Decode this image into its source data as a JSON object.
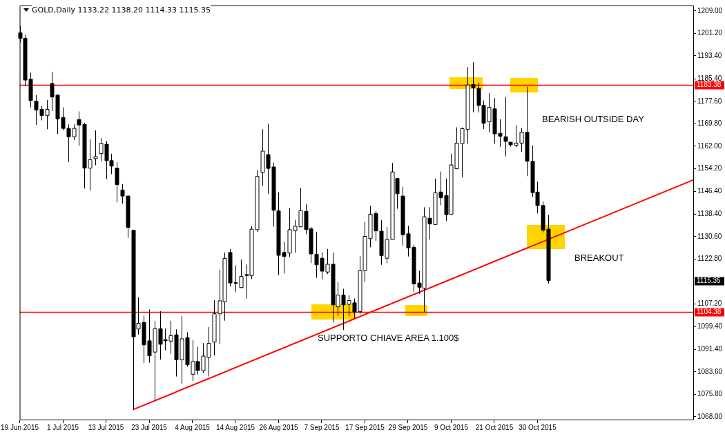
{
  "chart_data": {
    "type": "candlestick",
    "title": "GOLD,Daily 1133.22 1138.20 1114.33 1115.35",
    "color": "#000000",
    "categories": [
      "19 Jun 2015",
      null,
      null,
      null,
      null,
      null,
      null,
      null,
      "1 Jul 2015",
      null,
      null,
      null,
      null,
      null,
      null,
      null,
      "13 Jul 2015",
      null,
      null,
      null,
      null,
      null,
      null,
      null,
      "23 Jul 2015",
      null,
      null,
      null,
      null,
      null,
      null,
      null,
      "4 Aug 2015",
      null,
      null,
      null,
      null,
      null,
      null,
      null,
      "14 Aug 2015",
      null,
      null,
      null,
      null,
      null,
      null,
      null,
      "26 Aug 2015",
      null,
      null,
      null,
      null,
      null,
      null,
      null,
      "7 Sep 2015",
      null,
      null,
      null,
      null,
      null,
      null,
      null,
      "17 Sep 2015",
      null,
      null,
      null,
      null,
      null,
      null,
      null,
      "29 Sep 2015",
      null,
      null,
      null,
      null,
      null,
      null,
      null,
      "9 Oct 2015",
      null,
      null,
      null,
      null,
      null,
      null,
      null,
      "21 Oct 2015",
      null,
      null,
      null,
      null,
      null,
      null,
      null,
      "30 Oct 2015",
      null,
      null,
      null,
      null,
      null,
      null,
      null,
      null,
      null,
      null,
      null,
      null,
      null,
      null,
      null,
      null,
      null,
      null,
      null,
      null,
      null,
      null,
      null,
      null,
      null,
      null,
      null,
      null,
      null
    ],
    "ohlc": [
      [
        1201.4,
        1203.8,
        1198.1,
        1199.5
      ],
      [
        1199.5,
        1200.7,
        1182.9,
        1185.0
      ],
      [
        1185.3,
        1187.6,
        1175.5,
        1177.9
      ],
      [
        1177.7,
        1179.8,
        1169.4,
        1174.6
      ],
      [
        1174.8,
        1176.0,
        1171.0,
        1172.7
      ],
      [
        1172.7,
        1178.1,
        1167.9,
        1174.8
      ],
      [
        1183.8,
        1187.9,
        1174.3,
        1179.1
      ],
      [
        1179.8,
        1180.0,
        1166.3,
        1171.5
      ],
      [
        1172.0,
        1175.5,
        1167.5,
        1168.2
      ],
      [
        1168.2,
        1169.6,
        1156.5,
        1165.3
      ],
      [
        1165.3,
        1169.6,
        1164.1,
        1168.2
      ],
      [
        1171.3,
        1174.1,
        1162.2,
        1169.4
      ],
      [
        1169.6,
        1170.1,
        1147.3,
        1154.4
      ],
      [
        1154.4,
        1164.4,
        1146.6,
        1157.3
      ],
      [
        1157.7,
        1167.5,
        1155.4,
        1158.4
      ],
      [
        1159.4,
        1164.8,
        1156.8,
        1163.0
      ],
      [
        1162.7,
        1163.9,
        1150.6,
        1157.0
      ],
      [
        1157.0,
        1159.4,
        1152.3,
        1155.1
      ],
      [
        1154.4,
        1156.5,
        1142.5,
        1148.7
      ],
      [
        1146.8,
        1148.9,
        1142.1,
        1144.7
      ],
      [
        1144.7,
        1144.9,
        1130.2,
        1133.8
      ],
      [
        1132.8,
        1132.8,
        1070.5,
        1095.8
      ],
      [
        1098.5,
        1109.5,
        1096.6,
        1100.5
      ],
      [
        1100.8,
        1103.1,
        1086.6,
        1093.0
      ],
      [
        1094.4,
        1105.3,
        1086.8,
        1089.2
      ],
      [
        1090.5,
        1101.2,
        1073.7,
        1098.6
      ],
      [
        1098.6,
        1104.7,
        1087.9,
        1093.2
      ],
      [
        1094.8,
        1098.6,
        1091.1,
        1094.4
      ],
      [
        1094.3,
        1101.4,
        1089.9,
        1096.2
      ],
      [
        1096.5,
        1098.4,
        1082.0,
        1087.8
      ],
      [
        1087.8,
        1103.1,
        1079.4,
        1095.1
      ],
      [
        1095.5,
        1097.4,
        1085.4,
        1086.1
      ],
      [
        1082.8,
        1094.6,
        1080.4,
        1087.2
      ],
      [
        1087.2,
        1092.3,
        1082.6,
        1084.1
      ],
      [
        1084.0,
        1093.6,
        1083.2,
        1089.1
      ],
      [
        1088.7,
        1099.2,
        1082.0,
        1093.5
      ],
      [
        1094.0,
        1108.5,
        1089.3,
        1103.8
      ],
      [
        1103.8,
        1119.1,
        1093.2,
        1108.3
      ],
      [
        1108.0,
        1125.1,
        1101.4,
        1123.0
      ],
      [
        1125.1,
        1126.3,
        1113.3,
        1114.5
      ],
      [
        1114.6,
        1120.6,
        1111.3,
        1114.4
      ],
      [
        1112.9,
        1122.6,
        1112.7,
        1116.8
      ],
      [
        1117.4,
        1120.9,
        1109.1,
        1117.1
      ],
      [
        1117.1,
        1134.2,
        1115.8,
        1133.2
      ],
      [
        1133.0,
        1153.6,
        1132.3,
        1151.5
      ],
      [
        1152.9,
        1167.9,
        1148.3,
        1160.3
      ],
      [
        1159.1,
        1169.8,
        1145.5,
        1154.3
      ],
      [
        1154.8,
        1156.3,
        1134.1,
        1139.8
      ],
      [
        1139.6,
        1146.0,
        1117.2,
        1124.1
      ],
      [
        1125.1,
        1128.9,
        1117.8,
        1123.7
      ],
      [
        1124.9,
        1140.6,
        1123.5,
        1133.0
      ],
      [
        1132.7,
        1136.4,
        1125.1,
        1134.2
      ],
      [
        1134.0,
        1147.6,
        1133.9,
        1139.6
      ],
      [
        1139.4,
        1142.0,
        1131.4,
        1133.1
      ],
      [
        1133.3,
        1134.0,
        1121.4,
        1124.6
      ],
      [
        1124.5,
        1132.3,
        1116.3,
        1120.8
      ],
      [
        1123.1,
        1125.2,
        1115.7,
        1118.6
      ],
      [
        1118.3,
        1126.3,
        1117.6,
        1121.0
      ],
      [
        1121.0,
        1125.0,
        1100.8,
        1106.9
      ],
      [
        1106.2,
        1114.8,
        1103.1,
        1110.3
      ],
      [
        1110.3,
        1112.5,
        1098.2,
        1106.9
      ],
      [
        1107.1,
        1110.3,
        1103.0,
        1108.4
      ],
      [
        1107.6,
        1109.1,
        1102.3,
        1104.4
      ],
      [
        1104.6,
        1123.8,
        1103.6,
        1118.8
      ],
      [
        1118.8,
        1135.7,
        1114.8,
        1130.7
      ],
      [
        1129.9,
        1141.3,
        1126.9,
        1138.4
      ],
      [
        1138.6,
        1139.6,
        1129.1,
        1132.6
      ],
      [
        1132.5,
        1136.4,
        1120.8,
        1124.0
      ],
      [
        1123.1,
        1134.0,
        1121.3,
        1129.6
      ],
      [
        1129.6,
        1156.2,
        1129.6,
        1153.1
      ],
      [
        1150.8,
        1150.8,
        1140.3,
        1145.5
      ],
      [
        1144.7,
        1147.9,
        1127.5,
        1131.3
      ],
      [
        1131.6,
        1134.4,
        1123.7,
        1126.7
      ],
      [
        1126.9,
        1127.8,
        1111.3,
        1114.2
      ],
      [
        1114.5,
        1118.8,
        1110.7,
        1113.0
      ],
      [
        1112.7,
        1140.8,
        1104.4,
        1137.5
      ],
      [
        1137.0,
        1140.8,
        1129.6,
        1135.0
      ],
      [
        1134.8,
        1150.8,
        1134.8,
        1145.8
      ],
      [
        1146.1,
        1153.2,
        1141.5,
        1144.1
      ],
      [
        1144.9,
        1150.8,
        1136.1,
        1138.2
      ],
      [
        1138.4,
        1159.4,
        1138.2,
        1155.5
      ],
      [
        1154.2,
        1168.6,
        1154.0,
        1163.1
      ],
      [
        1162.9,
        1168.5,
        1151.2,
        1168.1
      ],
      [
        1167.9,
        1189.5,
        1162.9,
        1183.3
      ],
      [
        1183.5,
        1191.2,
        1173.8,
        1182.3
      ],
      [
        1182.1,
        1184.1,
        1173.8,
        1176.2
      ],
      [
        1176.2,
        1177.9,
        1168.0,
        1170.0
      ],
      [
        1170.5,
        1180.5,
        1166.8,
        1175.5
      ],
      [
        1175.0,
        1178.8,
        1162.9,
        1166.3
      ],
      [
        1166.5,
        1171.4,
        1161.8,
        1165.5
      ],
      [
        1165.3,
        1179.1,
        1158.5,
        1163.7
      ],
      [
        1163.4,
        1163.5,
        1161.9,
        1162.5
      ],
      [
        1162.3,
        1169.3,
        1161.7,
        1163.1
      ],
      [
        1163.1,
        1168.4,
        1160.1,
        1166.9
      ],
      [
        1166.9,
        1182.7,
        1151.6,
        1156.8
      ],
      [
        1156.8,
        1162.3,
        1144.3,
        1145.9
      ],
      [
        1146.1,
        1149.7,
        1138.7,
        1141.4
      ],
      [
        1141.4,
        1142.8,
        1132.1,
        1132.9
      ],
      [
        1133.22,
        1138.2,
        1114.33,
        1115.35
      ],
      null,
      null,
      null,
      null,
      null,
      null,
      null,
      null,
      null,
      null,
      null,
      null,
      null,
      null,
      null,
      null,
      null,
      null,
      null,
      null,
      null,
      null,
      null,
      null,
      null,
      null,
      null
    ],
    "colors": [
      "#000000",
      "#000000",
      "#000000",
      "#000000",
      "#000000",
      "#ffffff",
      "#000000",
      "#000000",
      "#000000",
      "#000000",
      "#ffffff",
      "#000000",
      "#000000",
      "#ffffff",
      "#ffffff",
      "#ffffff",
      "#000000",
      "#000000",
      "#000000",
      "#000000",
      "#000000",
      "#000000",
      "#ffffff",
      "#000000",
      "#000000",
      "#ffffff",
      "#000000",
      "#000000",
      "#ffffff",
      "#000000",
      "#ffffff",
      "#000000",
      "#ffffff",
      "#000000",
      "#ffffff",
      "#ffffff",
      "#ffffff",
      "#ffffff",
      "#ffffff",
      "#000000",
      "#000000",
      "#ffffff",
      "#000000",
      "#ffffff",
      "#ffffff",
      "#ffffff",
      "#000000",
      "#000000",
      "#000000",
      "#000000",
      "#ffffff",
      "#ffffff",
      "#ffffff",
      "#000000",
      "#000000",
      "#000000",
      "#000000",
      "#ffffff",
      "#000000",
      "#ffffff",
      "#000000",
      "#ffffff",
      "#000000",
      "#ffffff",
      "#ffffff",
      "#ffffff",
      "#000000",
      "#000000",
      "#ffffff",
      "#ffffff",
      "#000000",
      "#000000",
      "#000000",
      "#000000",
      "#000000",
      "#ffffff",
      "#000000",
      "#ffffff",
      "#000000",
      "#000000",
      "#ffffff",
      "#ffffff",
      "#ffffff",
      "#ffffff",
      "#000000",
      "#000000",
      "#000000",
      "#ffffff",
      "#000000",
      "#000000",
      "#000000",
      "#000000",
      "#ffffff",
      "#ffffff",
      "#000000",
      "#000000",
      "#000000",
      "#000000",
      "#000000",
      null,
      null,
      null,
      null,
      null,
      null,
      null,
      null,
      null,
      null,
      null,
      null,
      null,
      null,
      null,
      null,
      null,
      null,
      null,
      null,
      null,
      null,
      null,
      null,
      null,
      null,
      null
    ],
    "series": [
      {
        "type": "line",
        "color": "#ff0000",
        "values": [
          null,
          null,
          null,
          null,
          null,
          null,
          null,
          null,
          null,
          null,
          null,
          null,
          null,
          null,
          null,
          null,
          null,
          null,
          null,
          null,
          null,
          1070.5,
          null,
          null,
          null,
          null,
          null,
          null,
          null,
          null,
          null,
          null,
          null,
          null,
          null,
          null,
          null,
          null,
          null,
          null,
          null,
          null,
          null,
          null,
          null,
          null,
          null,
          null,
          null,
          null,
          null,
          null,
          null,
          null,
          null,
          null,
          null,
          null,
          null,
          null,
          null,
          null,
          null,
          null,
          null,
          null,
          null,
          null,
          null,
          null,
          null,
          null,
          null,
          null,
          null,
          null,
          null,
          null,
          null,
          null,
          null,
          null,
          null,
          null,
          null,
          null,
          null,
          null,
          null,
          null,
          null,
          null,
          null,
          null,
          null,
          null,
          null,
          null,
          null,
          null,
          null,
          null,
          null,
          null,
          null,
          null,
          null,
          null,
          null,
          null,
          null,
          null,
          null,
          null,
          null,
          null,
          null,
          null,
          null,
          null,
          null,
          null,
          null,
          null,
          null,
          1150.4
        ]
      }
    ],
    "ylim": [
      1066.8,
      1210.9
    ],
    "yticks": [
      {
        "value": 1209,
        "label": "1209.00"
      },
      {
        "value": 1201.2,
        "label": "1201.20"
      },
      {
        "value": 1193.4,
        "label": "1193.40"
      },
      {
        "value": 1185.4,
        "label": "1185.40"
      },
      {
        "value": 1177.6,
        "label": "1177.60"
      },
      {
        "value": 1169.8,
        "label": "1169.80"
      },
      {
        "value": 1162,
        "label": "1162.00"
      },
      {
        "value": 1154.2,
        "label": "1154.20"
      },
      {
        "value": 1146.4,
        "label": "1146.40"
      },
      {
        "value": 1138.4,
        "label": "1138.40"
      },
      {
        "value": 1130.6,
        "label": "1130.60"
      },
      {
        "value": 1122.8,
        "label": "1122.80"
      },
      {
        "value": 1107.2,
        "label": "1107.20"
      },
      {
        "value": 1099.4,
        "label": "1099.40"
      },
      {
        "value": 1091.4,
        "label": "1091.40"
      },
      {
        "value": 1083.6,
        "label": "1083.60"
      },
      {
        "value": 1075.8,
        "label": "1075.80"
      },
      {
        "value": 1068,
        "label": "1068.00"
      }
    ],
    "ref_lines": [
      {
        "axis": "y",
        "value": 1183.38,
        "label": "1183.38",
        "color": "#ff0000"
      },
      {
        "axis": "y",
        "value": 1104.38,
        "label": "1104.38",
        "color": "#ff0000"
      }
    ],
    "annotations": [
      "SUPPORTO CHIAVE AREA 1.100$",
      "BEARISH OUTSIDE DAY",
      "BREAKOUT",
      "1115.35"
    ],
    "grid": false,
    "legend": false
  }
}
